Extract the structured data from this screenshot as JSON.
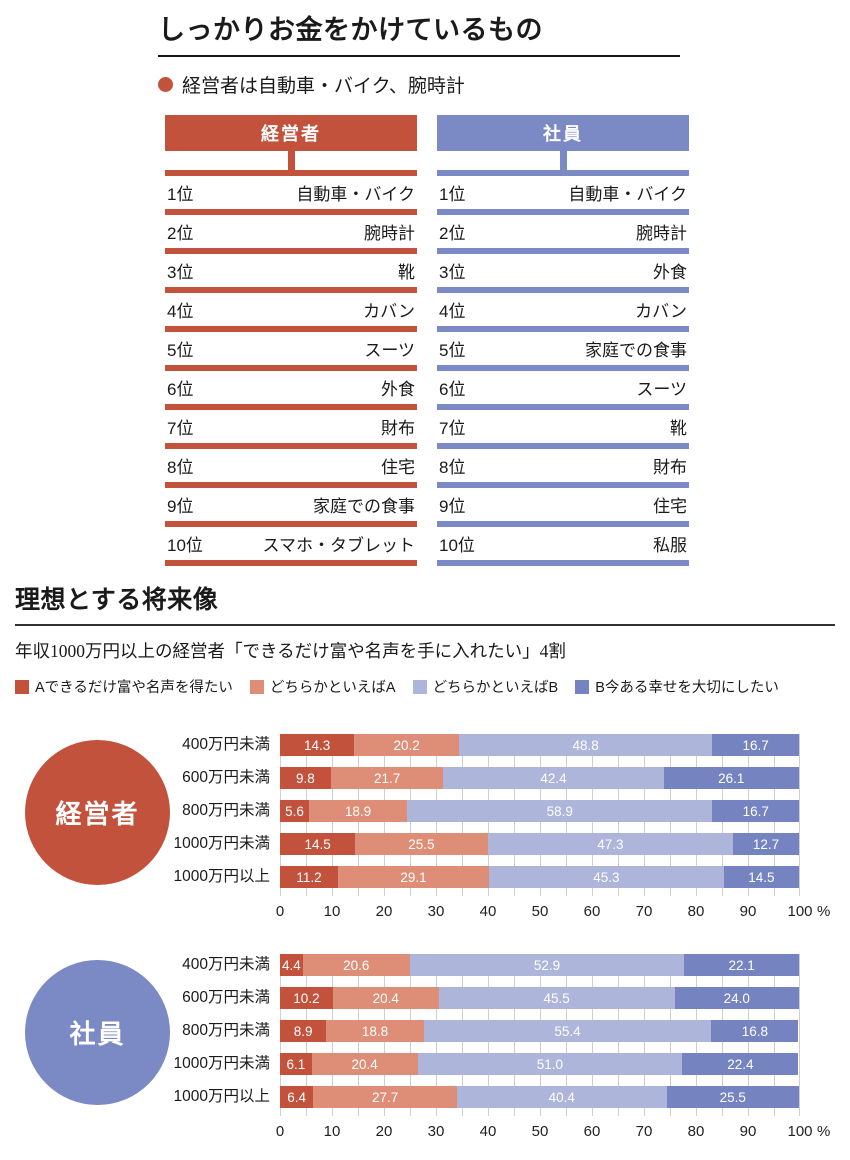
{
  "colors": {
    "manager": "#C3523D",
    "employee": "#7B89C4",
    "segment_a": "#C3523D",
    "segment_lean_a": "#DE8E76",
    "segment_lean_b": "#AEB5DB",
    "segment_b": "#7583C1",
    "gridline": "#CFCFCF"
  },
  "spending_section": {
    "title": "しっかりお金をかけているもの",
    "highlight": "経営者は自動車・バイク、腕時計",
    "tables": [
      {
        "header": "経営者",
        "color": "#C3523D",
        "rows": [
          {
            "rank": "1位",
            "item": "自動車・バイク"
          },
          {
            "rank": "2位",
            "item": "腕時計"
          },
          {
            "rank": "3位",
            "item": "靴"
          },
          {
            "rank": "4位",
            "item": "カバン"
          },
          {
            "rank": "5位",
            "item": "スーツ"
          },
          {
            "rank": "6位",
            "item": "外食"
          },
          {
            "rank": "7位",
            "item": "財布"
          },
          {
            "rank": "8位",
            "item": "住宅"
          },
          {
            "rank": "9位",
            "item": "家庭での食事"
          },
          {
            "rank": "10位",
            "item": "スマホ・タブレット"
          }
        ]
      },
      {
        "header": "社員",
        "color": "#7B89C4",
        "rows": [
          {
            "rank": "1位",
            "item": "自動車・バイク"
          },
          {
            "rank": "2位",
            "item": "腕時計"
          },
          {
            "rank": "3位",
            "item": "外食"
          },
          {
            "rank": "4位",
            "item": "カバン"
          },
          {
            "rank": "5位",
            "item": "家庭での食事"
          },
          {
            "rank": "6位",
            "item": "スーツ"
          },
          {
            "rank": "7位",
            "item": "靴"
          },
          {
            "rank": "8位",
            "item": "財布"
          },
          {
            "rank": "9位",
            "item": "住宅"
          },
          {
            "rank": "10位",
            "item": "私服"
          }
        ]
      }
    ]
  },
  "future_section": {
    "title": "理想とする将来像",
    "subtitle": "年収1000万円以上の経営者「できるだけ富や名声を手に入れたい」4割",
    "legend": [
      {
        "label": "Aできるだけ富や名声を得たい",
        "color": "#C3523D"
      },
      {
        "label": "どちらかといえばA",
        "color": "#DE8E76"
      },
      {
        "label": "どちらかといえばB",
        "color": "#AEB5DB"
      },
      {
        "label": "B今ある幸せを大切にしたい",
        "color": "#7583C1"
      }
    ],
    "axis": {
      "ticks": [
        0,
        10,
        20,
        30,
        40,
        50,
        60,
        70,
        80,
        90,
        100
      ],
      "unit": "%"
    }
  },
  "chart_data": [
    {
      "type": "bar",
      "orientation": "horizontal-stacked",
      "group": "経営者",
      "group_color": "#C3523D",
      "categories": [
        "400万円未満",
        "600万円未満",
        "800万円未満",
        "1000万円未満",
        "1000万円以上"
      ],
      "series": [
        {
          "name": "Aできるだけ富や名声を得たい",
          "color": "#C3523D",
          "values": [
            14.3,
            9.8,
            5.6,
            14.5,
            11.2
          ]
        },
        {
          "name": "どちらかといえばA",
          "color": "#DE8E76",
          "values": [
            20.2,
            21.7,
            18.9,
            25.5,
            29.1
          ]
        },
        {
          "name": "どちらかといえばB",
          "color": "#AEB5DB",
          "values": [
            48.8,
            42.4,
            58.9,
            47.3,
            45.3
          ]
        },
        {
          "name": "B今ある幸せを大切にしたい",
          "color": "#7583C1",
          "values": [
            16.7,
            26.1,
            16.7,
            12.7,
            14.5
          ]
        }
      ],
      "xlim": [
        0,
        100
      ],
      "x_unit": "%",
      "grid_step": 5,
      "legend_position": "top"
    },
    {
      "type": "bar",
      "orientation": "horizontal-stacked",
      "group": "社員",
      "group_color": "#7B89C4",
      "categories": [
        "400万円未満",
        "600万円未満",
        "800万円未満",
        "1000万円未満",
        "1000万円以上"
      ],
      "series": [
        {
          "name": "Aできるだけ富や名声を得たい",
          "color": "#C3523D",
          "values": [
            4.4,
            10.2,
            8.9,
            6.1,
            6.4
          ]
        },
        {
          "name": "どちらかといえばA",
          "color": "#DE8E76",
          "values": [
            20.6,
            20.4,
            18.8,
            20.4,
            27.7
          ]
        },
        {
          "name": "どちらかといえばB",
          "color": "#AEB5DB",
          "values": [
            52.9,
            45.5,
            55.4,
            51.0,
            40.4
          ]
        },
        {
          "name": "B今ある幸せを大切にしたい",
          "color": "#7583C1",
          "values": [
            22.1,
            24.0,
            16.8,
            22.4,
            25.5
          ]
        }
      ],
      "xlim": [
        0,
        100
      ],
      "x_unit": "%",
      "grid_step": 5,
      "legend_position": "top"
    }
  ]
}
